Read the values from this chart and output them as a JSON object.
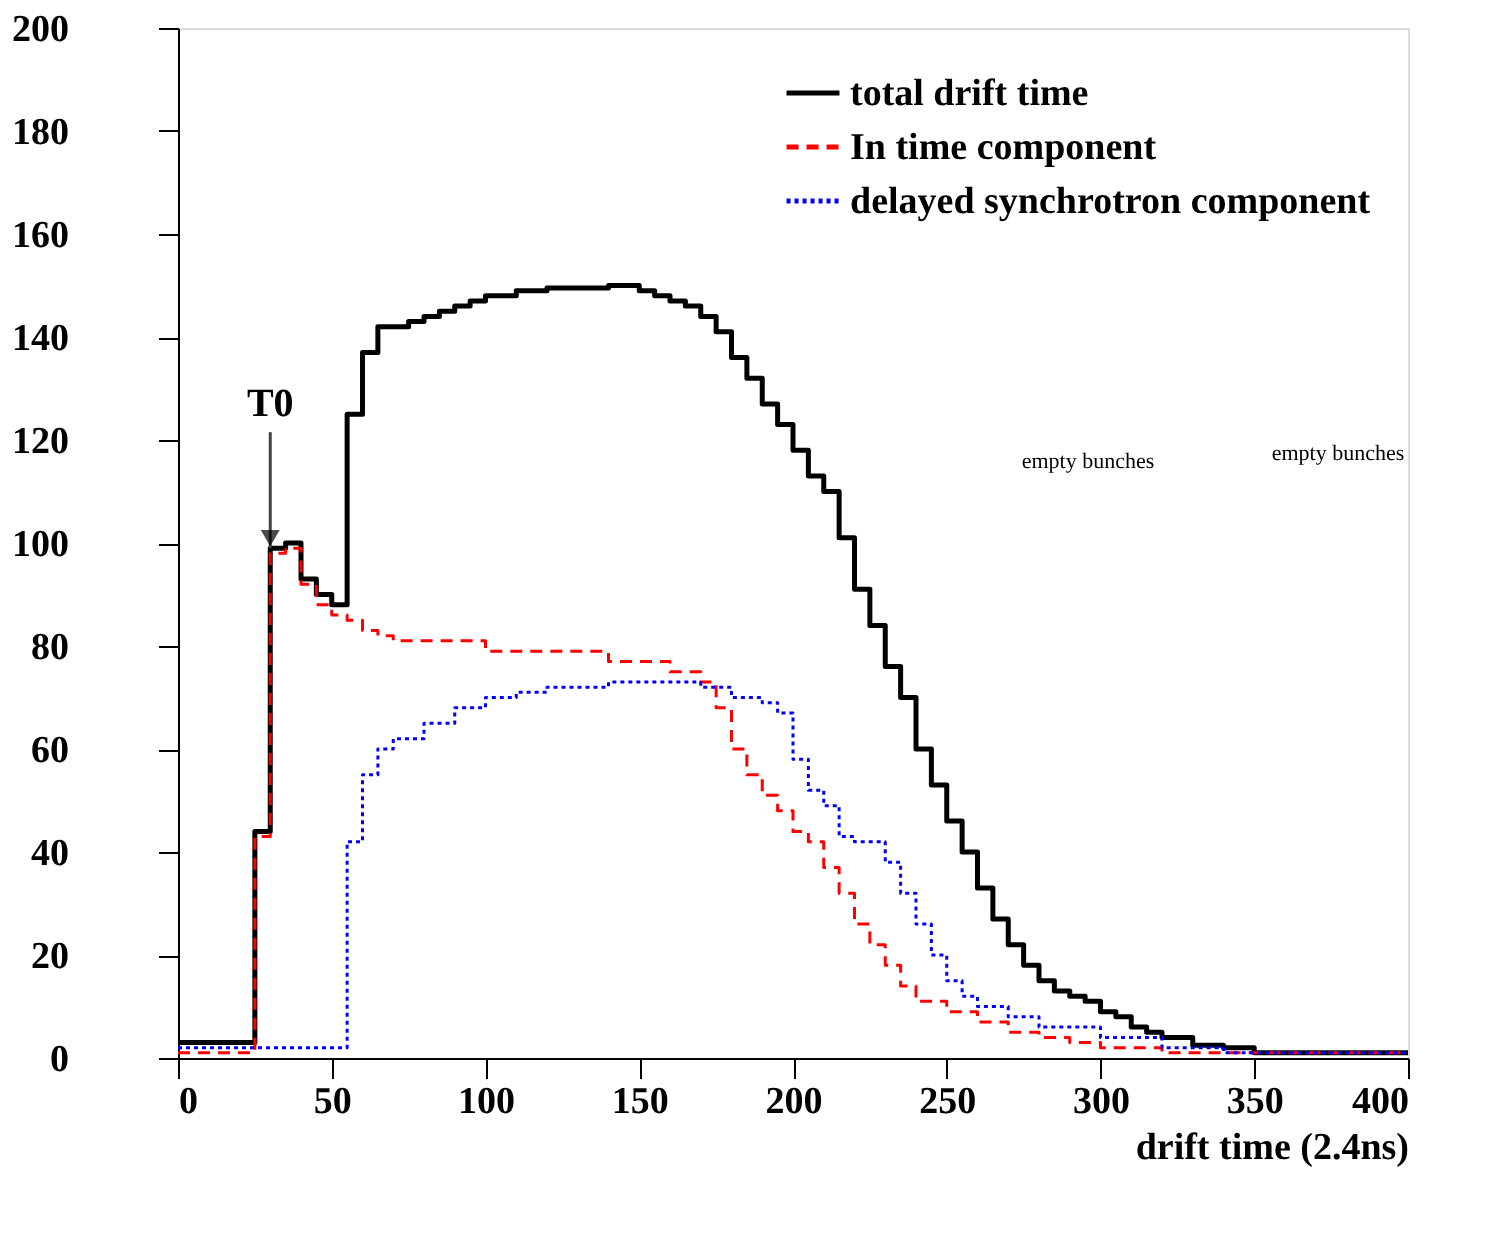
{
  "chart_data": {
    "type": "step",
    "xlabel": "drift time (2.4ns)",
    "xlim": [
      0,
      400
    ],
    "xticks": [
      0,
      50,
      100,
      150,
      200,
      250,
      300,
      350,
      400
    ],
    "ylim": [
      0,
      200
    ],
    "yticks": [
      0,
      20,
      40,
      60,
      80,
      100,
      120,
      140,
      160,
      180,
      200
    ],
    "grid": false,
    "legend": "top right",
    "annotations": [
      {
        "text": "T0",
        "x": 30,
        "y": 99
      },
      "empty bunches",
      "empty bunches"
    ],
    "series": [
      {
        "name": "total drift time",
        "color": "#000000",
        "line_style": "solid",
        "x": [
          0,
          25,
          30,
          35,
          40,
          45,
          50,
          55,
          60,
          65,
          75,
          80,
          85,
          90,
          95,
          100,
          110,
          120,
          140,
          150,
          155,
          160,
          165,
          170,
          175,
          180,
          185,
          190,
          195,
          200,
          205,
          210,
          215,
          220,
          225,
          230,
          235,
          240,
          245,
          250,
          255,
          260,
          265,
          270,
          275,
          280,
          285,
          290,
          295,
          300,
          305,
          310,
          315,
          320,
          330,
          340,
          350,
          400
        ],
        "values": [
          3,
          44,
          99,
          100,
          93,
          90,
          88,
          125,
          137,
          142,
          143,
          144,
          145,
          146,
          147,
          148,
          149,
          149.5,
          150,
          149,
          148,
          147,
          146,
          144,
          141,
          136,
          132,
          127,
          123,
          118,
          113,
          110,
          101,
          91,
          84,
          76,
          70,
          60,
          53,
          46,
          40,
          33,
          27,
          22,
          18,
          15,
          13,
          12,
          11,
          9,
          8,
          6,
          5,
          4,
          2.5,
          2,
          1,
          1
        ]
      },
      {
        "name": "In time component",
        "color": "#ff0000",
        "line_style": "dashed",
        "x": [
          0,
          25,
          30,
          35,
          40,
          45,
          50,
          55,
          60,
          65,
          70,
          100,
          140,
          160,
          170,
          175,
          180,
          185,
          190,
          195,
          200,
          205,
          210,
          215,
          220,
          225,
          230,
          235,
          240,
          250,
          260,
          270,
          280,
          290,
          300,
          320,
          400
        ],
        "values": [
          1,
          43,
          98,
          99,
          92,
          88,
          86,
          85,
          83,
          82,
          81,
          79,
          77,
          75,
          73,
          68,
          60,
          55,
          51,
          48,
          44,
          42,
          37,
          32,
          26,
          22,
          18,
          14,
          11,
          9,
          7,
          5,
          4,
          3,
          2,
          1,
          1
        ]
      },
      {
        "name": "delayed synchrotron component",
        "color": "#0000ff",
        "line_style": "dotted",
        "x": [
          0,
          55,
          60,
          65,
          70,
          80,
          90,
          100,
          110,
          120,
          140,
          170,
          180,
          190,
          195,
          200,
          205,
          210,
          215,
          220,
          230,
          235,
          240,
          245,
          250,
          255,
          260,
          270,
          280,
          300,
          320,
          340,
          400
        ],
        "values": [
          2,
          42,
          55,
          60,
          62,
          65,
          68,
          70,
          71,
          72,
          73,
          72,
          70,
          69,
          67,
          58,
          52,
          49,
          43,
          42,
          38,
          32,
          26,
          20,
          15,
          12,
          10,
          8,
          6,
          4,
          2,
          1,
          1
        ]
      }
    ]
  }
}
